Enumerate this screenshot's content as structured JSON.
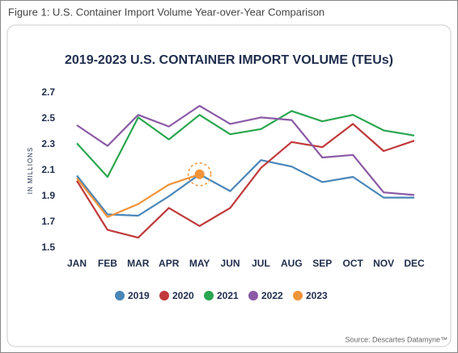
{
  "caption": "Figure 1: U.S. Container Import Volume Year-over-Year Comparison",
  "source": "Source: Descartes Datamyne™",
  "chart_data": {
    "type": "line",
    "title": "2019-2023 U.S. CONTAINER IMPORT VOLUME (TEUs)",
    "ylabel": "IN MILLIONS",
    "categories": [
      "JAN",
      "FEB",
      "MAR",
      "APR",
      "MAY",
      "JUN",
      "JUL",
      "AUG",
      "SEP",
      "OCT",
      "NOV",
      "DEC"
    ],
    "ylim": [
      1.5,
      2.7
    ],
    "yticks": [
      1.5,
      1.7,
      1.9,
      2.1,
      2.3,
      2.5,
      2.7
    ],
    "grid": false,
    "legend": "bottom",
    "series": [
      {
        "name": "2019",
        "color": "#4a86b8",
        "values": [
          2.06,
          1.76,
          1.75,
          1.9,
          2.07,
          1.94,
          2.18,
          2.13,
          2.01,
          2.05,
          1.89,
          1.89
        ]
      },
      {
        "name": "2020",
        "color": "#c0393b",
        "values": [
          2.02,
          1.64,
          1.58,
          1.81,
          1.67,
          1.81,
          2.12,
          2.32,
          2.28,
          2.46,
          2.25,
          2.33
        ]
      },
      {
        "name": "2021",
        "color": "#2aa650",
        "values": [
          2.31,
          2.05,
          2.51,
          2.34,
          2.53,
          2.38,
          2.42,
          2.56,
          2.48,
          2.53,
          2.41,
          2.37
        ]
      },
      {
        "name": "2022",
        "color": "#8a5aa6",
        "values": [
          2.45,
          2.29,
          2.53,
          2.44,
          2.6,
          2.46,
          2.51,
          2.49,
          2.2,
          2.22,
          1.93,
          1.91
        ]
      },
      {
        "name": "2023",
        "color": "#f0943a",
        "values": [
          2.04,
          1.74,
          1.84,
          1.99,
          2.07,
          null,
          null,
          null,
          null,
          null,
          null,
          null
        ]
      }
    ]
  }
}
